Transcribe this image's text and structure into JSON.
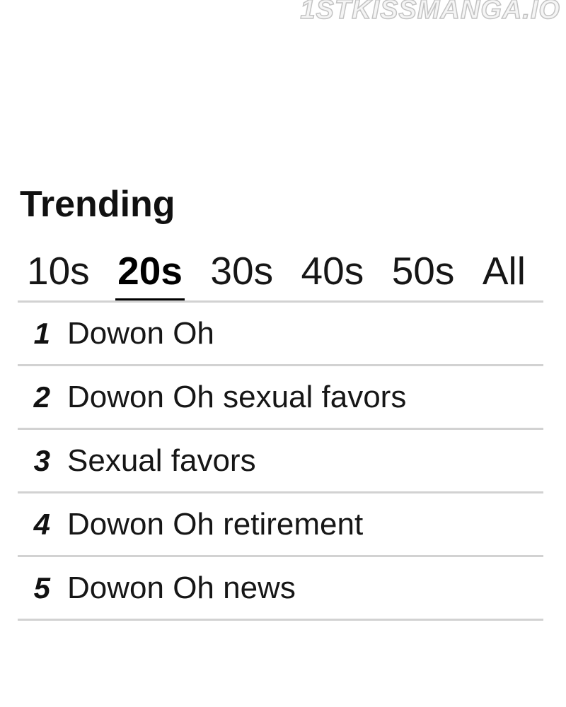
{
  "watermark": {
    "text": "1STKISSMANGA.IO"
  },
  "trending": {
    "title": "Trending",
    "tabs": [
      {
        "label": "10s",
        "active": false
      },
      {
        "label": "20s",
        "active": true
      },
      {
        "label": "30s",
        "active": false
      },
      {
        "label": "40s",
        "active": false
      },
      {
        "label": "50s",
        "active": false
      },
      {
        "label": "All",
        "active": false
      }
    ],
    "items": [
      {
        "rank": "1",
        "term": "Dowon Oh"
      },
      {
        "rank": "2",
        "term": "Dowon Oh sexual favors"
      },
      {
        "rank": "3",
        "term": "Sexual favors"
      },
      {
        "rank": "4",
        "term": "Dowon Oh retirement"
      },
      {
        "rank": "5",
        "term": "Dowon Oh news"
      }
    ]
  },
  "colors": {
    "text": "#111111",
    "divider": "#d2d2d2",
    "active_tab_underline": "#000000",
    "watermark_outline": "#c3c3c3"
  }
}
